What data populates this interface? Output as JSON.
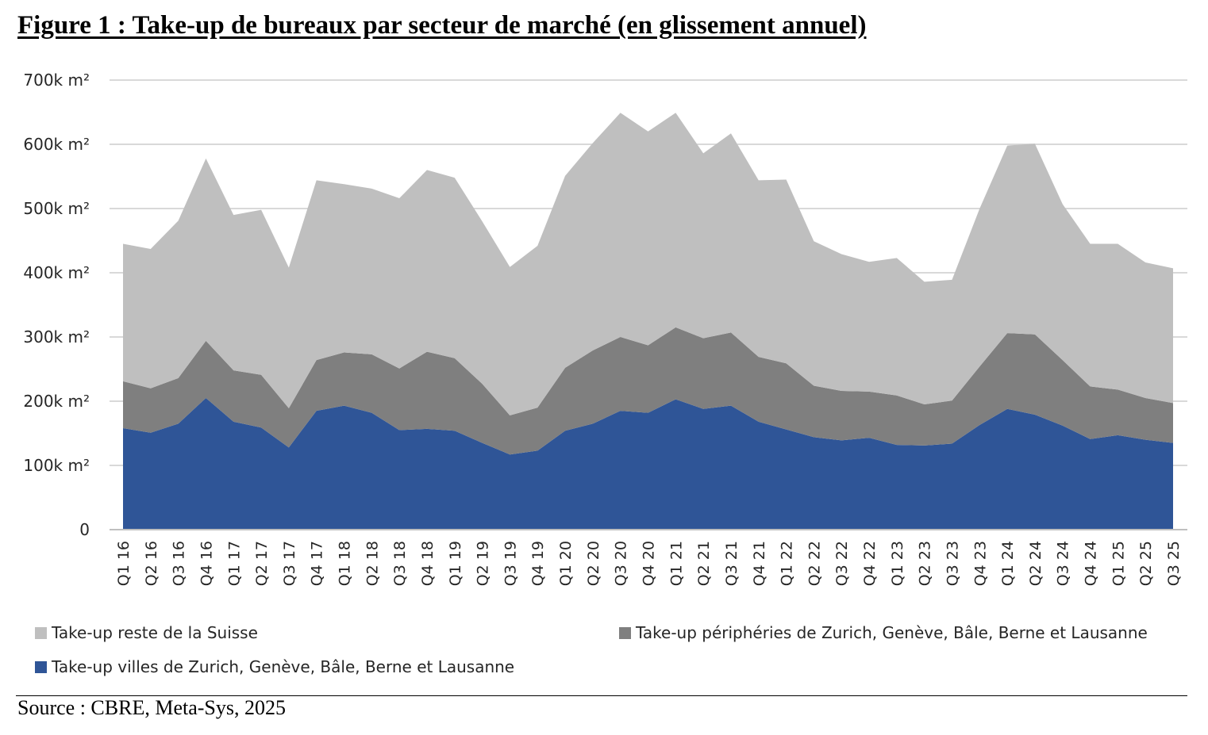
{
  "title": "Figure 1 : Take-up de bureaux par secteur de marché (en glissement annuel)",
  "source": "Source : CBRE, Meta-Sys, 2025",
  "colors": {
    "rest": "#bfbfbf",
    "periph": "#7f7f7f",
    "cities": "#2f5597",
    "grid": "#d9d9d9",
    "axis": "#bfbfbf"
  },
  "chart_data": {
    "type": "area",
    "stacked": true,
    "title": "Figure 1 : Take-up de bureaux par secteur de marché (en glissement annuel)",
    "xlabel": "",
    "ylabel": "",
    "ylim": [
      0,
      700000
    ],
    "y_ticks": [
      0,
      100000,
      200000,
      300000,
      400000,
      500000,
      600000,
      700000
    ],
    "y_tick_labels": [
      "0",
      "100k m²",
      "200k m²",
      "300k m²",
      "400k m²",
      "500k m²",
      "600k m²",
      "700k m²"
    ],
    "grid": true,
    "legend_position": "bottom",
    "categories": [
      "Q1 16",
      "Q2 16",
      "Q3 16",
      "Q4 16",
      "Q1 17",
      "Q2 17",
      "Q3 17",
      "Q4 17",
      "Q1 18",
      "Q2 18",
      "Q3 18",
      "Q4 18",
      "Q1 19",
      "Q2 19",
      "Q3 19",
      "Q4 19",
      "Q1 20",
      "Q2 20",
      "Q3 20",
      "Q4 20",
      "Q1 21",
      "Q2 21",
      "Q3 21",
      "Q4 21",
      "Q1 22",
      "Q2 22",
      "Q3 22",
      "Q4 22",
      "Q1 23",
      "Q2 23",
      "Q3 23",
      "Q4 23",
      "Q1 24",
      "Q2 24",
      "Q3 24",
      "Q4 24",
      "Q1 25",
      "Q2 25",
      "Q3 25"
    ],
    "series": [
      {
        "name": "Take-up villes de Zurich, Genève, Bâle, Berne et Lausanne",
        "color": "#2f5597",
        "values": [
          158000,
          151000,
          165000,
          205000,
          168000,
          159000,
          128000,
          185000,
          193000,
          182000,
          155000,
          157000,
          154000,
          135000,
          117000,
          123000,
          154000,
          165000,
          185000,
          182000,
          203000,
          188000,
          193000,
          168000,
          156000,
          144000,
          139000,
          143000,
          132000,
          131000,
          134000,
          163000,
          188000,
          179000,
          162000,
          141000,
          147000,
          140000,
          135000
        ]
      },
      {
        "name": "Take-up périphéries de Zurich, Genève, Bâle, Berne et Lausanne",
        "color": "#7f7f7f",
        "values": [
          73000,
          69000,
          71000,
          89000,
          80000,
          82000,
          61000,
          79000,
          83000,
          91000,
          96000,
          120000,
          113000,
          92000,
          61000,
          67000,
          98000,
          114000,
          115000,
          105000,
          112000,
          110000,
          114000,
          101000,
          103000,
          80000,
          77000,
          72000,
          77000,
          64000,
          67000,
          91000,
          118000,
          125000,
          102000,
          82000,
          71000,
          65000,
          62000
        ]
      },
      {
        "name": "Take-up reste de la Suisse",
        "color": "#bfbfbf",
        "values": [
          214000,
          217000,
          245000,
          284000,
          242000,
          257000,
          219000,
          280000,
          262000,
          258000,
          265000,
          283000,
          281000,
          253000,
          231000,
          252000,
          299000,
          323000,
          349000,
          333000,
          334000,
          288000,
          310000,
          275000,
          286000,
          225000,
          213000,
          202000,
          214000,
          191000,
          188000,
          246000,
          292000,
          297000,
          243000,
          222000,
          227000,
          211000,
          210000
        ]
      }
    ]
  },
  "legend": {
    "rest": "Take-up reste de la Suisse",
    "periph": "Take-up périphéries de Zurich, Genève, Bâle, Berne et Lausanne",
    "cities": "Take-up villes de Zurich, Genève, Bâle, Berne et Lausanne"
  }
}
